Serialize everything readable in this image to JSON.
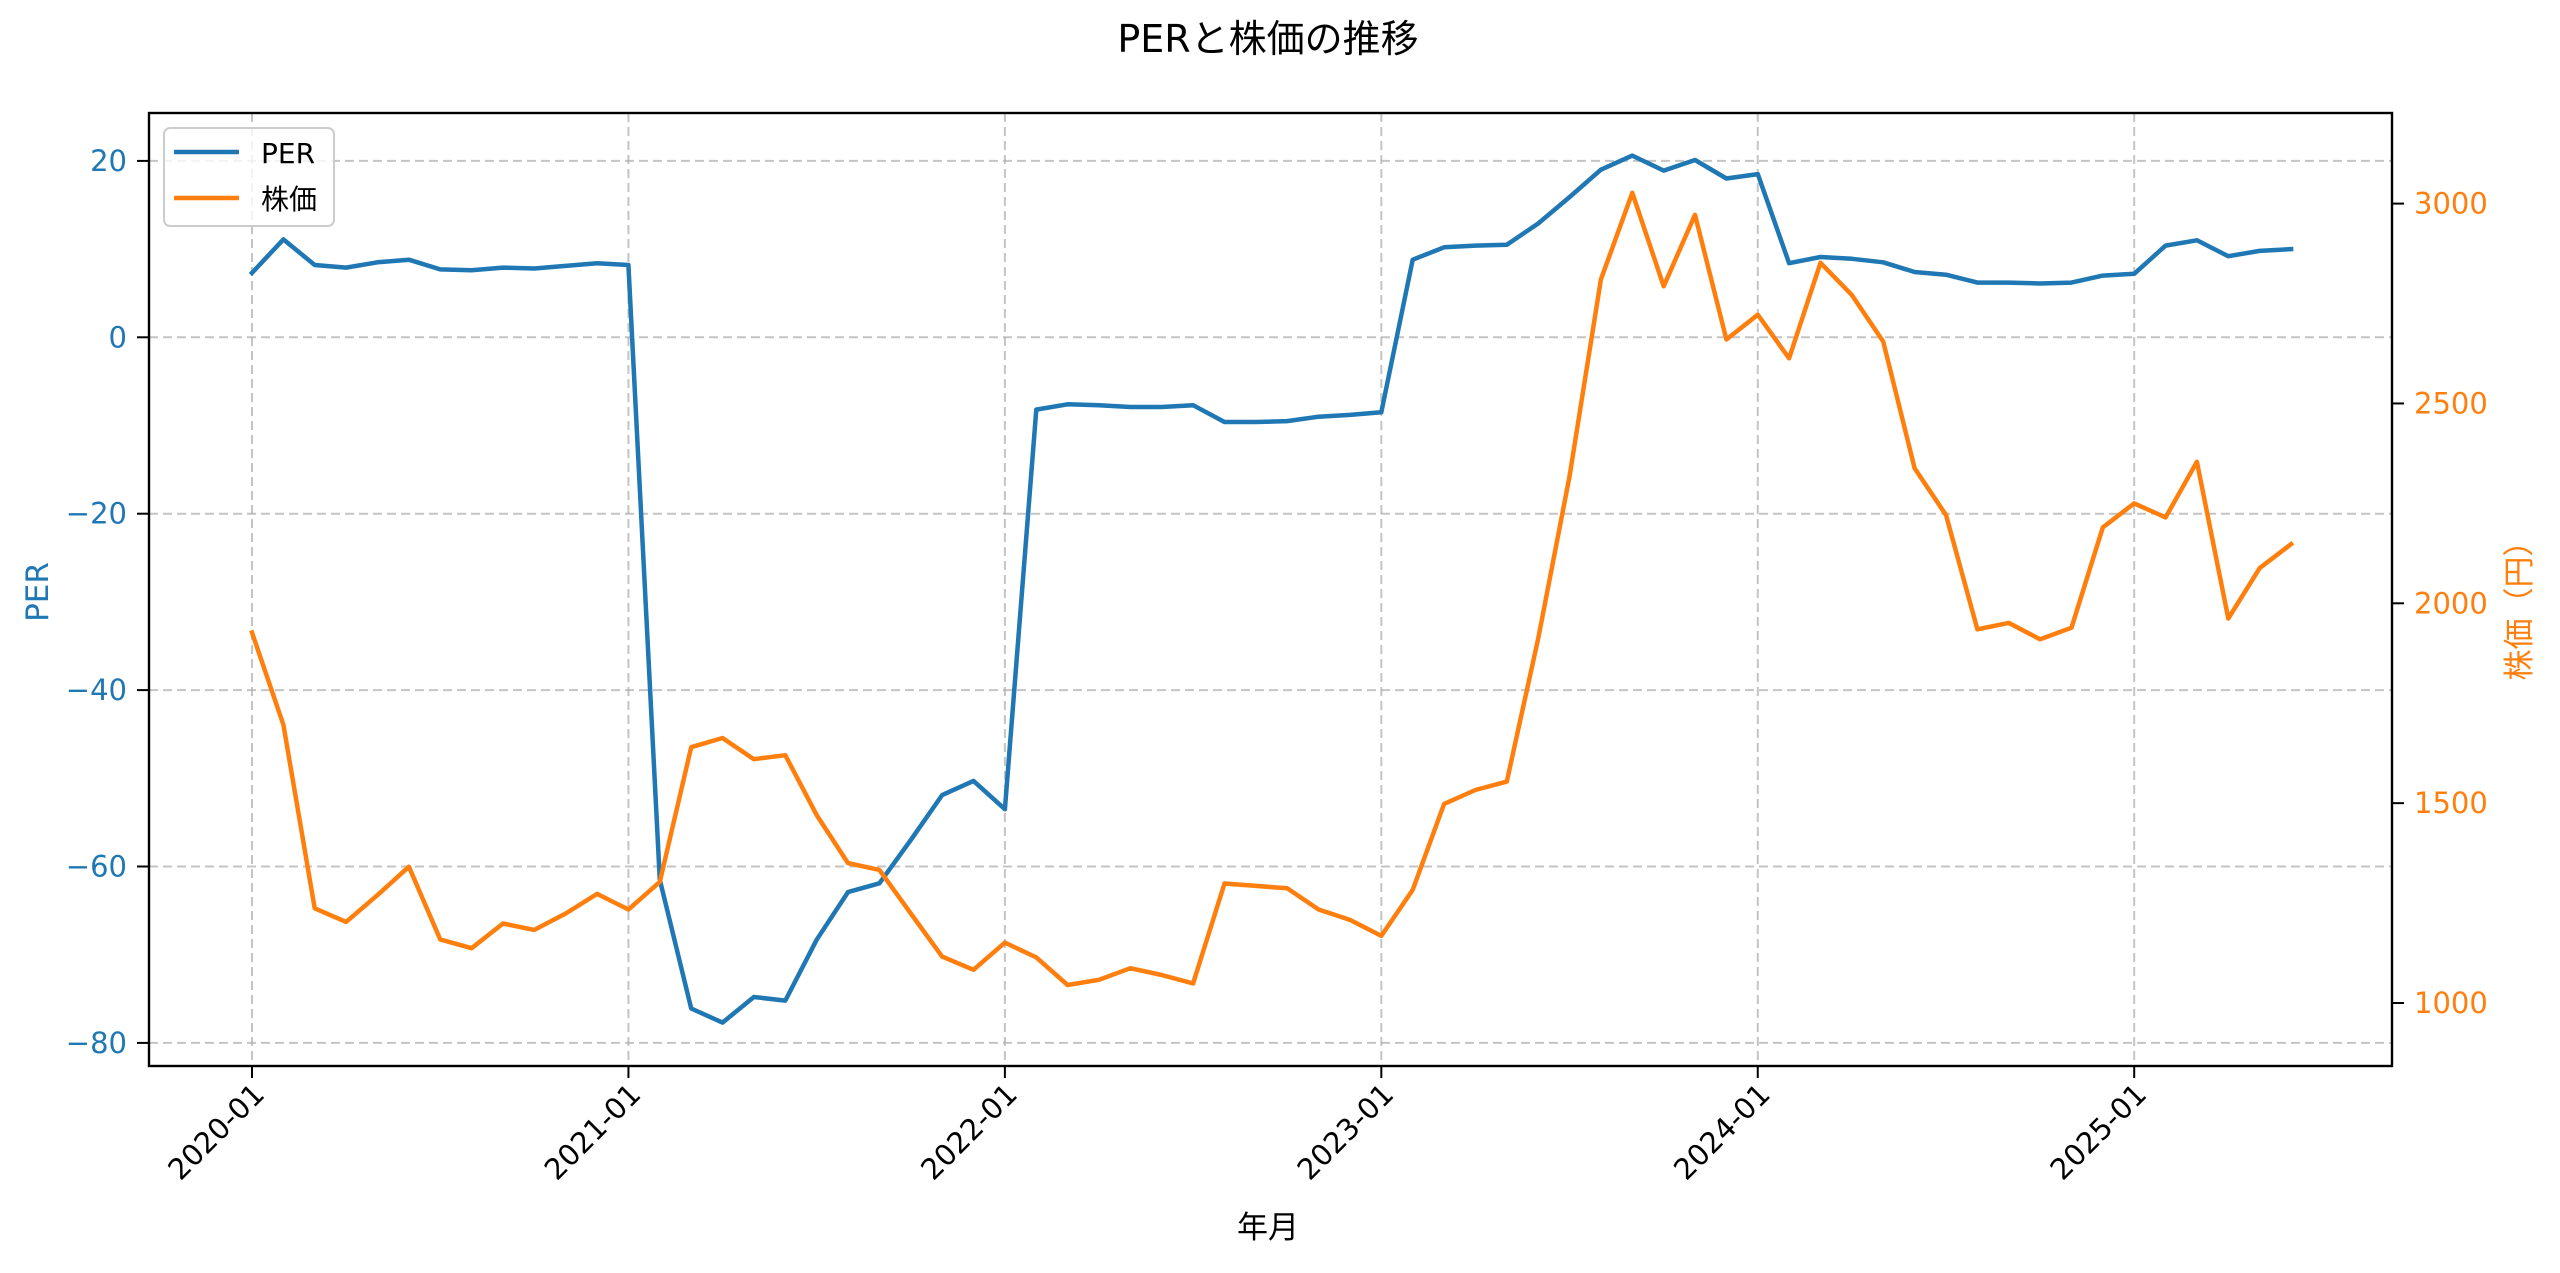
{
  "chart_data": {
    "type": "line",
    "title": "PERと株価の推移",
    "xlabel": "年月",
    "ylabel": "PER",
    "ylabel_right": "株価（円）",
    "x_tick_labels": [
      "2020-01",
      "2021-01",
      "2022-01",
      "2023-01",
      "2024-01",
      "2025-01"
    ],
    "y_ticks_left": [
      20,
      0,
      -20,
      -40,
      -60,
      -80
    ],
    "y_tick_labels_left": [
      "20",
      "0",
      "−20",
      "−40",
      "−60",
      "−80"
    ],
    "y_ticks_right": [
      3000,
      2500,
      2000,
      1500,
      1000
    ],
    "y_tick_labels_right": [
      "3000",
      "2500",
      "2000",
      "1500",
      "1000"
    ],
    "ylim_left": [
      -83.7,
      25.3
    ],
    "ylim_right": [
      845,
      3223
    ],
    "grid": true,
    "legend_position": "upper left",
    "x": [
      "2020-01",
      "2020-02",
      "2020-03",
      "2020-04",
      "2020-05",
      "2020-06",
      "2020-07",
      "2020-08",
      "2020-09",
      "2020-10",
      "2020-11",
      "2020-12",
      "2021-01",
      "2021-02",
      "2021-03",
      "2021-04",
      "2021-05",
      "2021-06",
      "2021-07",
      "2021-08",
      "2021-09",
      "2021-10",
      "2021-11",
      "2021-12",
      "2022-01",
      "2022-02",
      "2022-03",
      "2022-04",
      "2022-05",
      "2022-06",
      "2022-07",
      "2022-08",
      "2022-09",
      "2022-10",
      "2022-11",
      "2022-12",
      "2023-01",
      "2023-02",
      "2023-03",
      "2023-04",
      "2023-05",
      "2023-06",
      "2023-07",
      "2023-08",
      "2023-09",
      "2023-10",
      "2023-11",
      "2023-12",
      "2024-01",
      "2024-02",
      "2024-03",
      "2024-04",
      "2024-05",
      "2024-06",
      "2024-07",
      "2024-08",
      "2024-09",
      "2024-10",
      "2024-11",
      "2024-12",
      "2025-01",
      "2025-02",
      "2025-03",
      "2025-04",
      "2025-05",
      "2025-06"
    ],
    "series": [
      {
        "name": "PER",
        "axis": "left",
        "color": "#1f77b4",
        "values": [
          7.3,
          11.1,
          8.2,
          7.9,
          8.5,
          8.8,
          7.7,
          7.6,
          7.9,
          7.8,
          8.1,
          8.4,
          8.2,
          -61.5,
          -76.1,
          -77.7,
          -74.8,
          -75.2,
          -68.3,
          -62.9,
          -61.9,
          -57.0,
          -51.9,
          -50.3,
          -53.5,
          -8.2,
          -7.6,
          -7.7,
          -7.9,
          -7.9,
          -7.7,
          -9.6,
          -9.6,
          -9.5,
          -9.0,
          -8.8,
          -8.5,
          8.8,
          10.2,
          10.4,
          10.5,
          12.9,
          15.9,
          19.0,
          20.6,
          18.9,
          20.1,
          18.0,
          18.5,
          8.4,
          9.1,
          8.9,
          8.5,
          7.4,
          7.1,
          6.2,
          6.2,
          6.1,
          6.2,
          7.0,
          7.2,
          10.4,
          11.0,
          9.2,
          9.8,
          10.0
        ]
      },
      {
        "name": "株価",
        "axis": "right",
        "color": "#ff7f0e",
        "values": [
          1927,
          1696,
          1237,
          1203,
          1270,
          1341,
          1159,
          1137,
          1199,
          1183,
          1224,
          1273,
          1234,
          1303,
          1640,
          1663,
          1610,
          1620,
          1470,
          1350,
          1333,
          1224,
          1116,
          1083,
          1151,
          1114,
          1045,
          1058,
          1087,
          1070,
          1049,
          1299,
          1293,
          1287,
          1234,
          1208,
          1168,
          1283,
          1498,
          1533,
          1554,
          1912,
          2317,
          2810,
          3027,
          2793,
          2972,
          2660,
          2722,
          2613,
          2852,
          2771,
          2655,
          2338,
          2221,
          1935,
          1951,
          1910,
          1939,
          2190,
          2250,
          2215,
          2354,
          1962,
          2088,
          2148
        ]
      }
    ]
  },
  "colors": {
    "per": "#1f77b4",
    "price": "#ff7f0e",
    "grid": "#b0b0b0",
    "axis": "#000000"
  },
  "legend": {
    "items": [
      {
        "label": "PER",
        "color": "#1f77b4"
      },
      {
        "label": "株価",
        "color": "#ff7f0e"
      }
    ]
  }
}
